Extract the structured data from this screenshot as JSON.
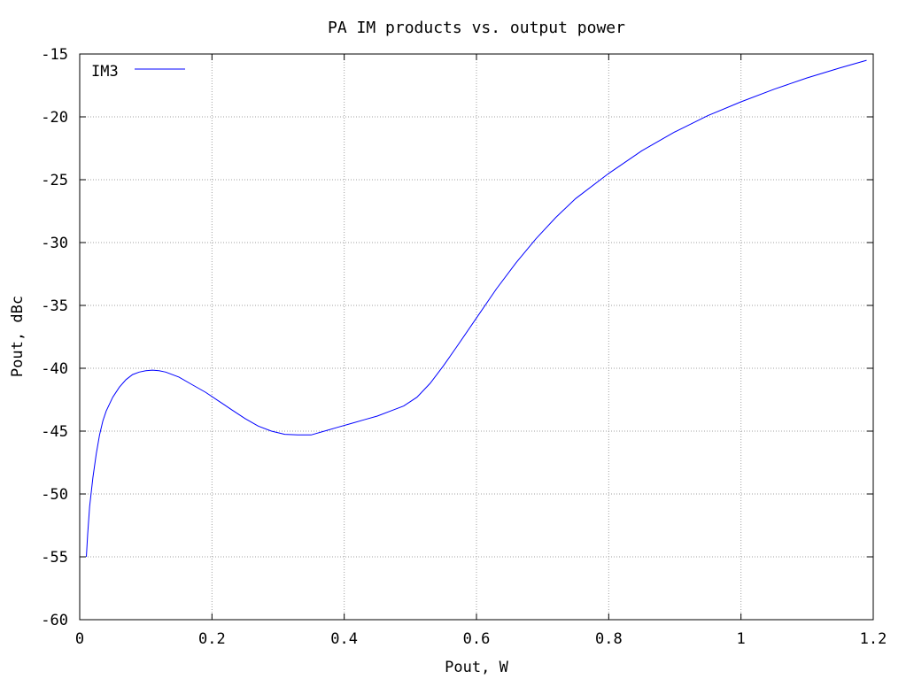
{
  "chart_data": {
    "type": "line",
    "title": "PA IM products vs. output power",
    "xlabel": "Pout, W",
    "ylabel": "Pout, dBc",
    "xlim": [
      0,
      1.2
    ],
    "ylim": [
      -60,
      -15
    ],
    "xticks": [
      0,
      0.2,
      0.4,
      0.6,
      0.8,
      1,
      1.2
    ],
    "xtick_labels": [
      "0",
      "0.2",
      "0.4",
      "0.6",
      "0.8",
      "1",
      "1.2"
    ],
    "yticks": [
      -60,
      -55,
      -50,
      -45,
      -40,
      -35,
      -30,
      -25,
      -20,
      -15
    ],
    "ytick_labels": [
      "-60",
      "-55",
      "-50",
      "-45",
      "-40",
      "-35",
      "-30",
      "-25",
      "-20",
      "-15"
    ],
    "grid": true,
    "legend_position": "top-left",
    "series": [
      {
        "name": "IM3",
        "color": "#0000ff",
        "x": [
          0.01,
          0.012,
          0.015,
          0.02,
          0.025,
          0.03,
          0.035,
          0.04,
          0.05,
          0.06,
          0.07,
          0.08,
          0.09,
          0.1,
          0.11,
          0.12,
          0.13,
          0.15,
          0.17,
          0.19,
          0.21,
          0.23,
          0.25,
          0.27,
          0.29,
          0.31,
          0.33,
          0.35,
          0.37,
          0.39,
          0.41,
          0.43,
          0.45,
          0.47,
          0.49,
          0.51,
          0.53,
          0.55,
          0.57,
          0.6,
          0.63,
          0.66,
          0.69,
          0.72,
          0.75,
          0.8,
          0.85,
          0.9,
          0.95,
          1.0,
          1.05,
          1.1,
          1.15,
          1.19
        ],
        "y": [
          -55.0,
          -53.2,
          -51.0,
          -48.7,
          -46.8,
          -45.3,
          -44.2,
          -43.4,
          -42.3,
          -41.5,
          -40.9,
          -40.5,
          -40.3,
          -40.2,
          -40.15,
          -40.2,
          -40.3,
          -40.7,
          -41.3,
          -41.9,
          -42.6,
          -43.3,
          -44.0,
          -44.6,
          -45.0,
          -45.25,
          -45.3,
          -45.3,
          -45.0,
          -44.7,
          -44.4,
          -44.1,
          -43.8,
          -43.4,
          -43.0,
          -42.3,
          -41.2,
          -39.8,
          -38.3,
          -36.0,
          -33.7,
          -31.6,
          -29.7,
          -28.0,
          -26.5,
          -24.5,
          -22.7,
          -21.2,
          -19.9,
          -18.8,
          -17.8,
          -16.9,
          -16.1,
          -15.5
        ]
      }
    ]
  }
}
